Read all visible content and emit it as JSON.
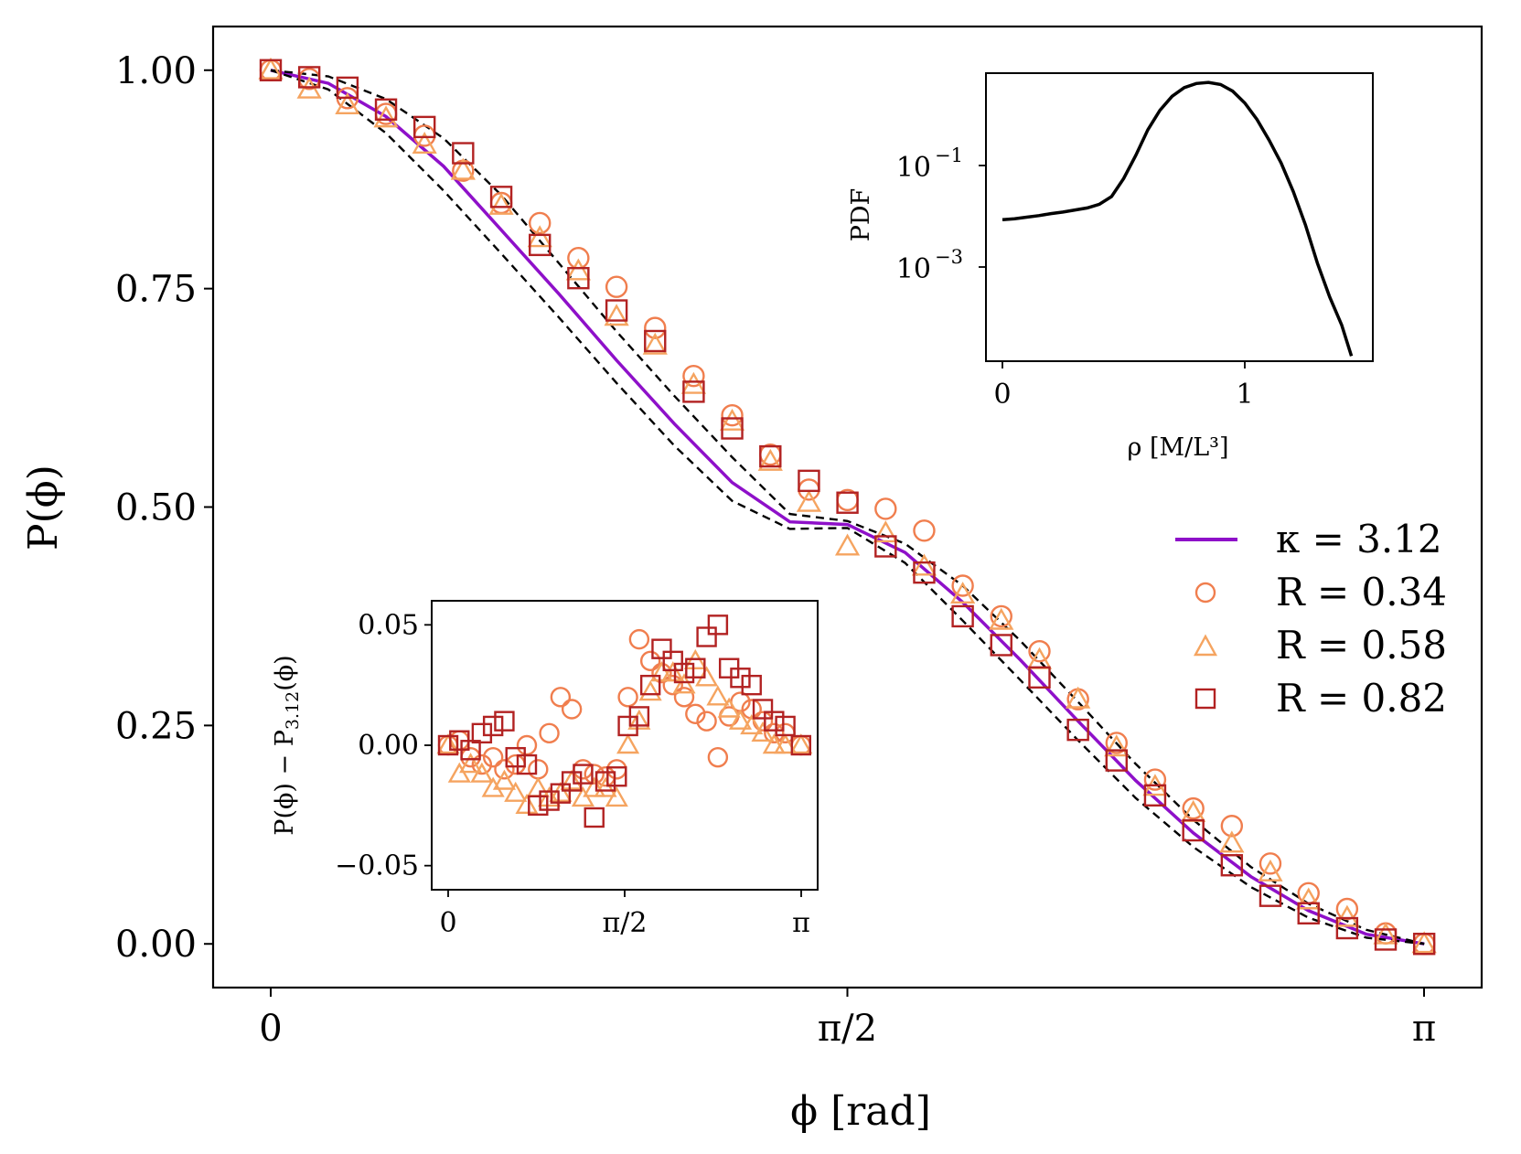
{
  "main": {
    "xlabel": "ϕ [rad]",
    "ylabel": "P(ϕ)",
    "xlim": [
      0,
      3.14159
    ],
    "ylim": [
      -0.05,
      1.05
    ],
    "xticks": [
      {
        "v": 0,
        "label": "0"
      },
      {
        "v": 1.5708,
        "label": "π/2"
      },
      {
        "v": 3.14159,
        "label": "π"
      }
    ],
    "yticks": [
      {
        "v": 0,
        "label": "0.00"
      },
      {
        "v": 0.25,
        "label": "0.25"
      },
      {
        "v": 0.5,
        "label": "0.50"
      },
      {
        "v": 0.75,
        "label": "0.75"
      },
      {
        "v": 1,
        "label": "1.00"
      }
    ]
  },
  "legend": {
    "items": [
      {
        "label": "κ = 3.12",
        "kind": "line",
        "color": "#8e10c9"
      },
      {
        "label": "R = 0.34",
        "kind": "circle",
        "color": "#f07e4e"
      },
      {
        "label": "R = 0.58",
        "kind": "triangle",
        "color": "#f5a460"
      },
      {
        "label": "R = 0.82",
        "kind": "square",
        "color": "#b22222"
      }
    ]
  },
  "inset_pdf": {
    "xlabel": "ρ [M/L³]",
    "ylabel": "PDF",
    "xlim": [
      -0.05,
      1.5
    ],
    "xticks": [
      {
        "v": 0,
        "label": "0"
      },
      {
        "v": 1,
        "label": "1"
      }
    ],
    "yticks": [
      {
        "exp": -1,
        "base": "10",
        "label": "−1"
      },
      {
        "exp": -3,
        "base": "10",
        "label": "−3"
      }
    ]
  },
  "inset_resid": {
    "ylabel": "P(ϕ) − P3.12(ϕ)",
    "ylabel_main": "P(ϕ) − P",
    "ylabel_sub": "3.12",
    "ylabel_end": "(ϕ)",
    "xlim": [
      -0.05,
      3.3
    ],
    "ylim": [
      -0.06,
      0.06
    ],
    "xticks": [
      {
        "v": 0,
        "label": "0"
      },
      {
        "v": 1.5708,
        "label": "π/2"
      },
      {
        "v": 3.14159,
        "label": "π"
      }
    ],
    "yticks": [
      {
        "v": 0.05,
        "label": "0.05"
      },
      {
        "v": 0,
        "label": "0.00"
      },
      {
        "v": -0.05,
        "label": "−0.05"
      }
    ]
  },
  "chart_data": [
    {
      "type": "scatter",
      "id": "main",
      "title": "",
      "xlabel": "ϕ [rad]",
      "ylabel": "P(ϕ)",
      "xlim": [
        0,
        3.14159
      ],
      "ylim": [
        -0.05,
        1.05
      ],
      "x": [
        0,
        0.105,
        0.209,
        0.314,
        0.419,
        0.524,
        0.628,
        0.733,
        0.838,
        0.942,
        1.047,
        1.152,
        1.257,
        1.361,
        1.466,
        1.571,
        1.675,
        1.78,
        1.885,
        1.99,
        2.094,
        2.199,
        2.304,
        2.409,
        2.513,
        2.618,
        2.723,
        2.827,
        2.932,
        3.037,
        3.142
      ],
      "series": [
        {
          "name": "κ = 3.12",
          "kind": "line",
          "color": "#8e10c9",
          "x": [
            0,
            0.157,
            0.314,
            0.471,
            0.628,
            0.785,
            0.942,
            1.1,
            1.257,
            1.414,
            1.571,
            1.728,
            1.885,
            2.042,
            2.199,
            2.356,
            2.513,
            2.67,
            2.827,
            2.985,
            3.142
          ],
          "values": [
            1.0,
            0.985,
            0.947,
            0.89,
            0.817,
            0.744,
            0.668,
            0.595,
            0.528,
            0.483,
            0.48,
            0.448,
            0.391,
            0.325,
            0.255,
            0.187,
            0.127,
            0.077,
            0.038,
            0.011,
            0.0
          ]
        },
        {
          "name": "upper bound",
          "kind": "dashed",
          "color": "#000000",
          "x": [
            0,
            0.157,
            0.314,
            0.471,
            0.628,
            0.785,
            0.942,
            1.1,
            1.257,
            1.414,
            1.571,
            1.728,
            1.885,
            2.042,
            2.199,
            2.356,
            2.513,
            2.67,
            2.827,
            2.985,
            3.142
          ],
          "values": [
            1.0,
            0.993,
            0.967,
            0.922,
            0.857,
            0.779,
            0.701,
            0.627,
            0.557,
            0.492,
            0.484,
            0.458,
            0.41,
            0.347,
            0.277,
            0.206,
            0.142,
            0.088,
            0.046,
            0.016,
            0.0
          ]
        },
        {
          "name": "lower bound",
          "kind": "dashed",
          "color": "#000000",
          "x": [
            0,
            0.157,
            0.314,
            0.471,
            0.628,
            0.785,
            0.942,
            1.1,
            1.257,
            1.414,
            1.571,
            1.728,
            1.885,
            2.042,
            2.199,
            2.356,
            2.513,
            2.67,
            2.827,
            2.985,
            3.142
          ],
          "values": [
            1.0,
            0.978,
            0.928,
            0.862,
            0.79,
            0.717,
            0.642,
            0.57,
            0.507,
            0.475,
            0.476,
            0.436,
            0.37,
            0.302,
            0.233,
            0.167,
            0.111,
            0.065,
            0.03,
            0.007,
            0.0
          ]
        },
        {
          "name": "R = 0.34",
          "kind": "circle",
          "color": "#f07e4e",
          "values": [
            1.0,
            0.99,
            0.968,
            0.95,
            0.925,
            0.885,
            0.848,
            0.825,
            0.785,
            0.752,
            0.705,
            0.65,
            0.605,
            0.56,
            0.52,
            0.508,
            0.498,
            0.473,
            0.41,
            0.375,
            0.335,
            0.28,
            0.23,
            0.188,
            0.155,
            0.135,
            0.092,
            0.058,
            0.04,
            0.012,
            0.0
          ]
        },
        {
          "name": "R = 0.58",
          "kind": "triangle",
          "color": "#f5a460",
          "values": [
            1.0,
            0.978,
            0.96,
            0.945,
            0.915,
            0.885,
            0.845,
            0.808,
            0.77,
            0.718,
            0.685,
            0.64,
            0.598,
            0.552,
            0.505,
            0.455,
            0.47,
            0.432,
            0.4,
            0.37,
            0.325,
            0.28,
            0.225,
            0.18,
            0.15,
            0.115,
            0.082,
            0.05,
            0.03,
            0.01,
            0.0
          ]
        },
        {
          "name": "R = 0.82",
          "kind": "square",
          "color": "#b22222",
          "values": [
            1.0,
            0.992,
            0.98,
            0.955,
            0.935,
            0.905,
            0.855,
            0.8,
            0.762,
            0.725,
            0.69,
            0.632,
            0.59,
            0.558,
            0.53,
            0.505,
            0.455,
            0.425,
            0.375,
            0.342,
            0.305,
            0.245,
            0.21,
            0.17,
            0.13,
            0.09,
            0.055,
            0.035,
            0.018,
            0.005,
            0.0
          ]
        }
      ]
    },
    {
      "type": "line",
      "id": "inset_pdf",
      "xlabel": "ρ [M/L³]",
      "ylabel": "PDF",
      "yscale": "log",
      "xlim": [
        -0.05,
        1.5
      ],
      "ylim_log10": [
        -4.8,
        0.8
      ],
      "series": [
        {
          "name": "PDF",
          "color": "#000000",
          "x": [
            0,
            0.05,
            0.1,
            0.15,
            0.2,
            0.25,
            0.3,
            0.35,
            0.4,
            0.45,
            0.5,
            0.55,
            0.6,
            0.65,
            0.7,
            0.75,
            0.8,
            0.85,
            0.9,
            0.95,
            1.0,
            1.05,
            1.1,
            1.15,
            1.2,
            1.25,
            1.3,
            1.35,
            1.4,
            1.42,
            1.44
          ],
          "values_log10": [
            -2.05,
            -2.03,
            -2.0,
            -1.97,
            -1.93,
            -1.9,
            -1.86,
            -1.82,
            -1.75,
            -1.6,
            -1.25,
            -0.8,
            -0.3,
            0.08,
            0.35,
            0.52,
            0.6,
            0.62,
            0.58,
            0.45,
            0.22,
            -0.1,
            -0.5,
            -0.95,
            -1.5,
            -2.15,
            -2.9,
            -3.55,
            -4.1,
            -4.4,
            -4.7
          ]
        }
      ]
    },
    {
      "type": "scatter",
      "id": "inset_resid",
      "xlabel": "",
      "ylabel": "P(ϕ) − P3.12(ϕ)",
      "xlim": [
        -0.05,
        3.3
      ],
      "ylim": [
        -0.06,
        0.06
      ],
      "series": [
        {
          "name": "R = 0.34",
          "kind": "circle",
          "color": "#f07e4e",
          "x": [
            0,
            0.1,
            0.2,
            0.3,
            0.4,
            0.5,
            0.6,
            0.7,
            0.8,
            0.9,
            1.0,
            1.1,
            1.2,
            1.3,
            1.4,
            1.5,
            1.6,
            1.7,
            1.8,
            1.9,
            2.0,
            2.1,
            2.2,
            2.3,
            2.4,
            2.5,
            2.6,
            2.7,
            2.8,
            2.9,
            3.0,
            3.14
          ],
          "values": [
            0.0,
            0.002,
            -0.005,
            -0.008,
            -0.005,
            -0.01,
            -0.008,
            0.0,
            -0.01,
            0.005,
            0.02,
            0.015,
            -0.01,
            -0.012,
            -0.013,
            -0.01,
            0.02,
            0.044,
            0.035,
            0.03,
            0.025,
            0.02,
            0.013,
            0.01,
            -0.005,
            0.012,
            0.018,
            0.015,
            0.01,
            0.005,
            0.005,
            0.0
          ]
        },
        {
          "name": "R = 0.58",
          "kind": "triangle",
          "color": "#f5a460",
          "x": [
            0,
            0.1,
            0.2,
            0.3,
            0.4,
            0.5,
            0.6,
            0.7,
            0.8,
            0.9,
            1.0,
            1.1,
            1.2,
            1.3,
            1.4,
            1.5,
            1.6,
            1.7,
            1.8,
            1.9,
            2.0,
            2.1,
            2.2,
            2.3,
            2.4,
            2.5,
            2.6,
            2.7,
            2.8,
            2.9,
            3.0,
            3.14
          ],
          "values": [
            0.0,
            -0.012,
            -0.008,
            -0.012,
            -0.018,
            -0.015,
            -0.02,
            -0.025,
            -0.018,
            -0.022,
            -0.02,
            -0.015,
            -0.022,
            -0.018,
            -0.018,
            -0.022,
            0.0,
            0.01,
            0.022,
            0.03,
            0.03,
            0.025,
            0.035,
            0.028,
            0.02,
            0.015,
            0.01,
            0.008,
            0.005,
            0.0,
            0.0,
            0.0
          ]
        },
        {
          "name": "R = 0.82",
          "kind": "square",
          "color": "#b22222",
          "x": [
            0,
            0.1,
            0.2,
            0.3,
            0.4,
            0.5,
            0.6,
            0.7,
            0.8,
            0.9,
            1.0,
            1.1,
            1.2,
            1.3,
            1.4,
            1.5,
            1.6,
            1.7,
            1.8,
            1.9,
            2.0,
            2.1,
            2.2,
            2.3,
            2.4,
            2.5,
            2.6,
            2.7,
            2.8,
            2.9,
            3.0,
            3.14
          ],
          "values": [
            0.0,
            0.002,
            -0.002,
            0.005,
            0.008,
            0.01,
            -0.005,
            -0.008,
            -0.025,
            -0.023,
            -0.02,
            -0.015,
            -0.012,
            -0.03,
            -0.015,
            -0.013,
            0.008,
            0.012,
            0.025,
            0.04,
            0.035,
            0.03,
            0.032,
            0.045,
            0.05,
            0.032,
            0.028,
            0.025,
            0.015,
            0.01,
            0.008,
            0.0
          ]
        }
      ]
    }
  ]
}
